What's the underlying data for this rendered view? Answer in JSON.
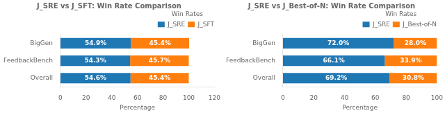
{
  "chart_data": [
    {
      "type": "bar",
      "orientation": "horizontal",
      "stacked": true,
      "title": "J_SRE vs J_SFT: Win Rate Comparison",
      "categories": [
        "BigGen",
        "FeedbackBench",
        "Overall"
      ],
      "series": [
        {
          "name": "J_SRE",
          "color": "#1f77b4",
          "values": [
            54.9,
            54.3,
            54.6
          ],
          "value_labels": [
            "54.9%",
            "54.3%",
            "54.6%"
          ]
        },
        {
          "name": "J_SFT",
          "color": "#ff7f0e",
          "values": [
            45.4,
            45.7,
            45.4
          ],
          "value_labels": [
            "45.4%",
            "45.7%",
            "45.4%"
          ]
        }
      ],
      "xlabel": "Percentage",
      "xlim": [
        0,
        120
      ],
      "xticks": [
        0,
        20,
        40,
        60,
        80,
        100,
        120
      ],
      "grid": false,
      "legend": "upper right",
      "legend_title": "Win Rates",
      "data_labels": true
    },
    {
      "type": "bar",
      "orientation": "horizontal",
      "stacked": true,
      "title": "J_SRE vs J_Best-of-N: Win Rate Comparison",
      "categories": [
        "BigGen",
        "FeedbackBench",
        "Overall"
      ],
      "series": [
        {
          "name": "J_SRE",
          "color": "#1f77b4",
          "values": [
            72.0,
            66.1,
            69.2
          ],
          "value_labels": [
            "72.0%",
            "66.1%",
            "69.2%"
          ]
        },
        {
          "name": "J_Best-of-N",
          "color": "#ff7f0e",
          "values": [
            28.0,
            33.9,
            30.8
          ],
          "value_labels": [
            "28.0%",
            "33.9%",
            "30.8%"
          ]
        }
      ],
      "xlabel": "Percentage",
      "xlim": [
        0,
        100
      ],
      "xticks": [
        0,
        20,
        40,
        60,
        80,
        100
      ],
      "grid": false,
      "legend": "upper right",
      "legend_title": "Win Rates",
      "data_labels": true
    }
  ]
}
